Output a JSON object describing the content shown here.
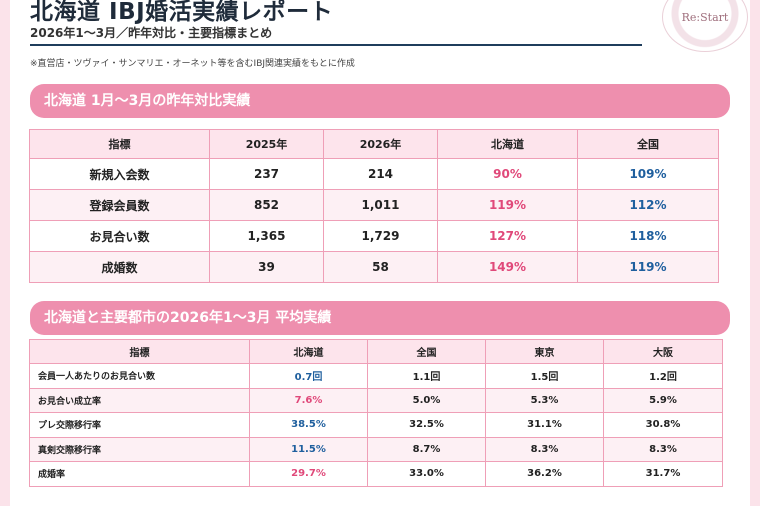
{
  "header": {
    "title": "北海道 IBJ婚活実績レポート",
    "subtitle": "2026年1〜3月／昨年対比・主要指標まとめ",
    "note": "※直営店・ツヴァイ・サンマリエ・オーネット等を含むIBJ関連実績をもとに作成"
  },
  "logo": {
    "text": "Re:Start",
    "sub": ""
  },
  "section1": {
    "title": "北海道 1月〜3月の昨年対比実績",
    "headers": [
      "指標",
      "2025年",
      "2026年",
      "北海道",
      "全国"
    ],
    "rows": [
      [
        "新規入会数",
        "237",
        "214",
        "90%",
        "109%"
      ],
      [
        "登録会員数",
        "852",
        "1,011",
        "119%",
        "112%"
      ],
      [
        "お見合い数",
        "1,365",
        "1,729",
        "127%",
        "118%"
      ],
      [
        "成婚数",
        "39",
        "58",
        "149%",
        "119%"
      ]
    ]
  },
  "section2": {
    "title": "北海道と主要都市の2026年1〜3月 平均実績",
    "headers": [
      "指標",
      "北海道",
      "全国",
      "東京",
      "大阪"
    ],
    "rows": [
      [
        "会員一人あたりのお見合い数",
        "0.7回",
        "1.1回",
        "1.5回",
        "1.2回"
      ],
      [
        "お見合い成立率",
        "7.6%",
        "5.0%",
        "5.3%",
        "5.9%"
      ],
      [
        "プレ交際移行率",
        "38.5%",
        "32.5%",
        "31.1%",
        "30.8%"
      ],
      [
        "真剣交際移行率",
        "11.5%",
        "8.7%",
        "8.3%",
        "8.3%"
      ],
      [
        "成婚率",
        "29.7%",
        "33.0%",
        "36.2%",
        "31.7%"
      ]
    ],
    "hokkaido_colors": [
      "blue",
      "pink",
      "blue",
      "blue",
      "pink"
    ]
  },
  "colors": {
    "accent": "#ee8fae",
    "pink_text": "#e0497a",
    "blue_text": "#1f5f9e"
  }
}
